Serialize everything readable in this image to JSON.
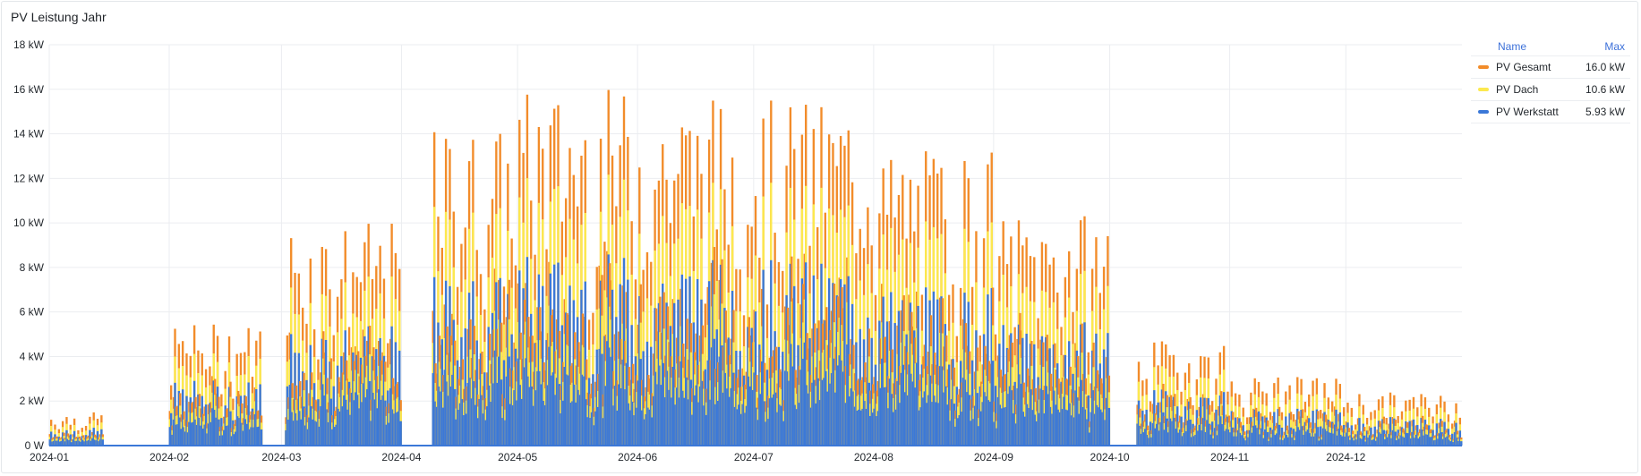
{
  "panel": {
    "title": "PV Leistung Jahr"
  },
  "legend": {
    "name_header": "Name",
    "max_header": "Max",
    "items": [
      {
        "name": "PV Gesamt",
        "max": "16.0 kW",
        "color": "#f28c2a"
      },
      {
        "name": "PV Dach",
        "max": "10.6 kW",
        "color": "#fce94f"
      },
      {
        "name": "PV Werkstatt",
        "max": "5.93 kW",
        "color": "#3b78d8"
      }
    ]
  },
  "chart_data": {
    "type": "bar",
    "title": "PV Leistung Jahr",
    "xlabel": "",
    "ylabel": "",
    "x_range": [
      "2024-01-01",
      "2024-12-31"
    ],
    "ylim": [
      0,
      18
    ],
    "y_ticks": [
      "0 W",
      "2 kW",
      "4 kW",
      "6 kW",
      "8 kW",
      "10 kW",
      "12 kW",
      "14 kW",
      "16 kW",
      "18 kW"
    ],
    "x_ticks": [
      "2024-01",
      "2024-02",
      "2024-03",
      "2024-04",
      "2024-05",
      "2024-06",
      "2024-07",
      "2024-08",
      "2024-09",
      "2024-10",
      "2024-11",
      "2024-12"
    ],
    "grid": true,
    "legend_position": "right",
    "unit": "kW",
    "series_max": {
      "PV Gesamt": 16.0,
      "PV Dach": 10.6,
      "PV Werkstatt": 5.93
    },
    "monthly_peak_gesamt_kW": [
      {
        "month": "2024-01",
        "peak": 1.5
      },
      {
        "month": "2024-02",
        "peak": 5.5
      },
      {
        "month": "2024-03",
        "peak": 10.0
      },
      {
        "month": "2024-04",
        "peak": 14.3
      },
      {
        "month": "2024-05",
        "peak": 16.0
      },
      {
        "month": "2024-06",
        "peak": 15.7
      },
      {
        "month": "2024-07",
        "peak": 15.5
      },
      {
        "month": "2024-08",
        "peak": 13.3
      },
      {
        "month": "2024-09",
        "peak": 10.4
      },
      {
        "month": "2024-10",
        "peak": 4.7
      },
      {
        "month": "2024-11",
        "peak": 3.1
      },
      {
        "month": "2024-12",
        "peak": 2.4
      }
    ],
    "no_data_periods": [
      [
        "2024-01-15",
        "2024-02-01"
      ],
      [
        "2024-02-25",
        "2024-03-02"
      ],
      [
        "2024-04-01",
        "2024-04-09"
      ],
      [
        "2024-10-01",
        "2024-10-08"
      ]
    ]
  }
}
